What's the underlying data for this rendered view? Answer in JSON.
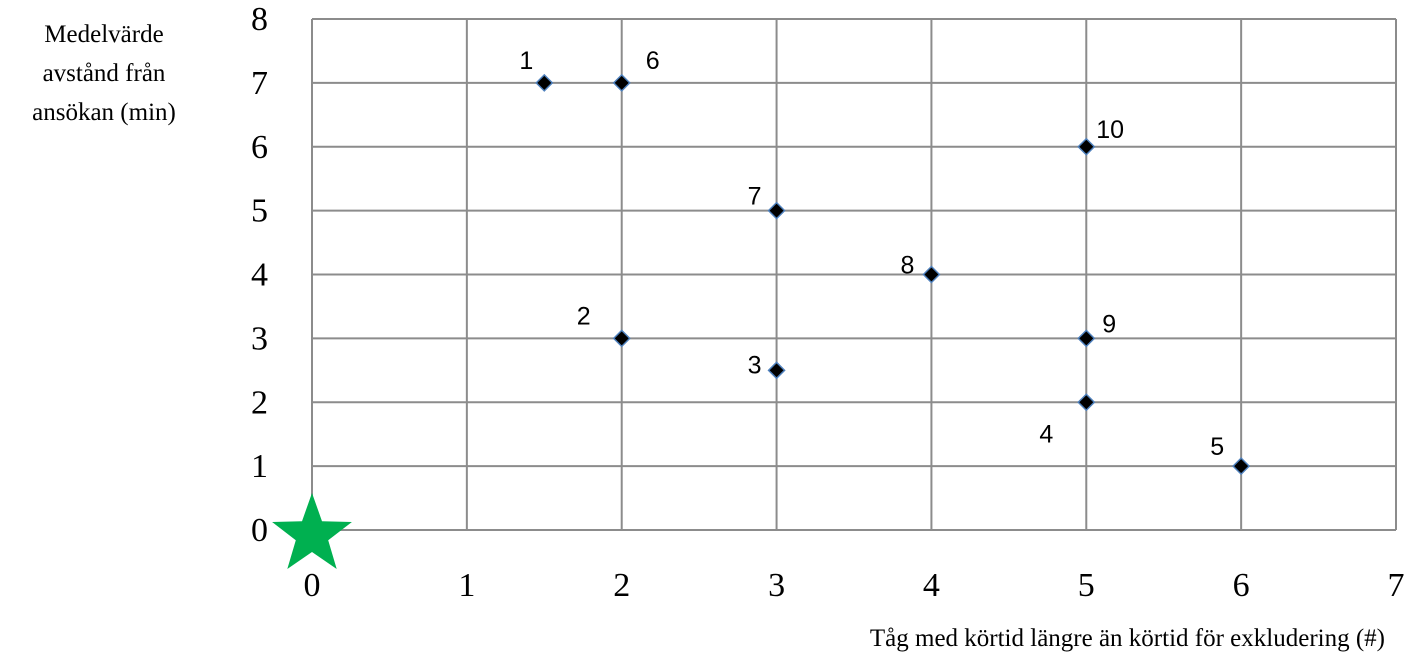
{
  "chart_data": {
    "type": "scatter",
    "title": "",
    "xlabel": "Tåg med körtid längre än körtid för exkludering (#)",
    "ylabel_lines": [
      "Medelvärde",
      "avstånd från",
      "ansökan (min)"
    ],
    "xlim": [
      0,
      7
    ],
    "ylim": [
      0,
      8
    ],
    "x_ticks": [
      "0",
      "1",
      "2",
      "3",
      "4",
      "5",
      "6",
      "7"
    ],
    "y_ticks": [
      "0",
      "1",
      "2",
      "3",
      "4",
      "5",
      "6",
      "7",
      "8"
    ],
    "grid": true,
    "legend": "none",
    "marker_color": "#000000",
    "marker_edge_color": "#4f81bd",
    "points": [
      {
        "label": "1",
        "x": 1.5,
        "y": 7
      },
      {
        "label": "2",
        "x": 2,
        "y": 3
      },
      {
        "label": "3",
        "x": 3,
        "y": 2.5
      },
      {
        "label": "4",
        "x": 5,
        "y": 2
      },
      {
        "label": "5",
        "x": 6,
        "y": 1
      },
      {
        "label": "6",
        "x": 2,
        "y": 7
      },
      {
        "label": "7",
        "x": 3,
        "y": 5
      },
      {
        "label": "8",
        "x": 4,
        "y": 4
      },
      {
        "label": "9",
        "x": 5,
        "y": 3
      },
      {
        "label": "10",
        "x": 5,
        "y": 6
      }
    ],
    "reference_marker": {
      "shape": "star",
      "x": 0,
      "y": 0,
      "color": "#00b050"
    }
  }
}
